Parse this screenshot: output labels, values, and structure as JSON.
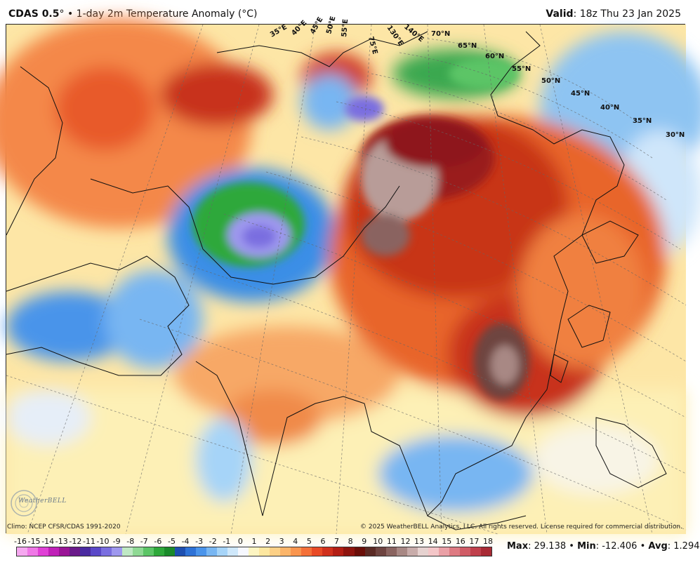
{
  "header": {
    "model": "CDAS 0.5",
    "degree": "°",
    "separator": "•",
    "product": "1-day 2m Temperature Anomaly (°C)",
    "valid_label": "Valid",
    "valid_value": ": 18z Thu 23 Jan 2025"
  },
  "map": {
    "region": "Asia",
    "latitude_labels": [
      "70°N",
      "65°N",
      "60°N",
      "55°N",
      "50°N",
      "45°N",
      "40°N",
      "35°N",
      "30°N"
    ],
    "longitude_labels": [
      "35°E",
      "40°E",
      "45°E",
      "50°E",
      "55°E",
      "75°E",
      "130°E",
      "140°E"
    ]
  },
  "footer": {
    "climo": "Climo: NCEP CFSR/CDAS 1991-2020",
    "copyright": "© 2025 WeatherBELL Analytics, LLC. All rights reserved. License required for commercial distribution.",
    "logo_text": "WeatherBELL"
  },
  "colorbar": {
    "ticks": [
      "-16",
      "-15",
      "-14",
      "-13",
      "-12",
      "-11",
      "-10",
      "-9",
      "-8",
      "-7",
      "-6",
      "-5",
      "-4",
      "-3",
      "-2",
      "-1",
      "0",
      "1",
      "2",
      "3",
      "4",
      "5",
      "6",
      "7",
      "8",
      "9",
      "10",
      "11",
      "12",
      "13",
      "14",
      "15",
      "16",
      "17",
      "18"
    ],
    "colors": [
      "#f6a8f0",
      "#ef78e6",
      "#e040d6",
      "#c020b8",
      "#9a1496",
      "#6a1a8a",
      "#4a2aa0",
      "#5a48c8",
      "#7a6ee0",
      "#9e98ee",
      "#bfe8c4",
      "#8fd994",
      "#5cc566",
      "#2ea83a",
      "#1a8a2a",
      "#1e4fb0",
      "#2e72d6",
      "#4a94ea",
      "#78b6f2",
      "#a6d4f8",
      "#cfe8fb",
      "#f6f8ff",
      "#fdf5c2",
      "#fde7a0",
      "#fcd086",
      "#fbb56a",
      "#f9954e",
      "#f47038",
      "#e84a26",
      "#d0301c",
      "#b31e14",
      "#8e140e",
      "#6a0e08",
      "#5a2a24",
      "#6e4440",
      "#8a6460",
      "#a88884",
      "#c8acaa",
      "#e6d2d0",
      "#f4c6c8",
      "#eaa0a6",
      "#de7a82",
      "#d05c66",
      "#c0404c",
      "#a82a34"
    ]
  },
  "stats": {
    "max_label": "Max",
    "max_value": ": 29.138",
    "min_label": "Min",
    "min_value": ": -12.406",
    "avg_label": "Avg",
    "avg_value": ": 1.294",
    "sep": "•"
  }
}
